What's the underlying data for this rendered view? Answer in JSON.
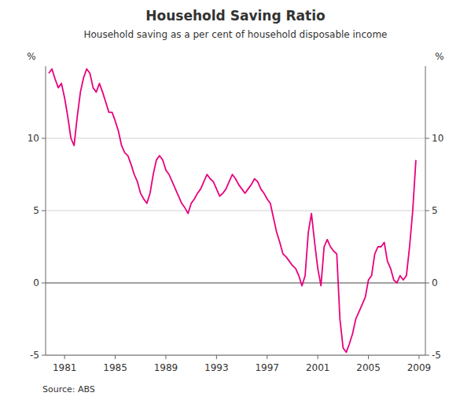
{
  "chart_data": {
    "type": "line",
    "title": "Household Saving Ratio",
    "subtitle": "Household saving as a per cent of household disposable income",
    "y_label": "%",
    "y2_label": "%",
    "source": "Source: ABS",
    "grid": true,
    "xlim": [
      1979.5,
      2009.5
    ],
    "xticks": [
      1981,
      1985,
      1989,
      1993,
      1997,
      2001,
      2005,
      2009
    ],
    "ylim": [
      -5,
      15
    ],
    "yticks": [
      -5,
      0,
      5,
      10
    ],
    "y2lim": [
      -5,
      15
    ],
    "y2ticks": [
      -5,
      0,
      5,
      10
    ],
    "x": [
      1979.75,
      1980.0,
      1980.25,
      1980.5,
      1980.75,
      1981.0,
      1981.25,
      1981.5,
      1981.75,
      1982.0,
      1982.25,
      1982.5,
      1982.75,
      1983.0,
      1983.25,
      1983.5,
      1983.75,
      1984.0,
      1984.25,
      1984.5,
      1984.75,
      1985.0,
      1985.25,
      1985.5,
      1985.75,
      1986.0,
      1986.25,
      1986.5,
      1986.75,
      1987.0,
      1987.25,
      1987.5,
      1987.75,
      1988.0,
      1988.25,
      1988.5,
      1988.75,
      1989.0,
      1989.25,
      1989.5,
      1989.75,
      1990.0,
      1990.25,
      1990.5,
      1990.75,
      1991.0,
      1991.25,
      1991.5,
      1991.75,
      1992.0,
      1992.25,
      1992.5,
      1992.75,
      1993.0,
      1993.25,
      1993.5,
      1993.75,
      1994.0,
      1994.25,
      1994.5,
      1994.75,
      1995.0,
      1995.25,
      1995.5,
      1995.75,
      1996.0,
      1996.25,
      1996.5,
      1996.75,
      1997.0,
      1997.25,
      1997.5,
      1997.75,
      1998.0,
      1998.25,
      1998.5,
      1998.75,
      1999.0,
      1999.25,
      1999.5,
      1999.75,
      2000.0,
      2000.25,
      2000.5,
      2000.75,
      2001.0,
      2001.25,
      2001.5,
      2001.75,
      2002.0,
      2002.25,
      2002.5,
      2002.75,
      2003.0,
      2003.25,
      2003.5,
      2003.75,
      2004.0,
      2004.25,
      2004.5,
      2004.75,
      2005.0,
      2005.25,
      2005.5,
      2005.75,
      2006.0,
      2006.25,
      2006.5,
      2006.75,
      2007.0,
      2007.25,
      2007.5,
      2007.75,
      2008.0,
      2008.25,
      2008.5,
      2008.75
    ],
    "series": [
      {
        "color": "#E8007D",
        "values": [
          14.5,
          14.8,
          14.1,
          13.5,
          13.8,
          12.8,
          11.5,
          10.0,
          9.5,
          11.5,
          13.2,
          14.2,
          14.8,
          14.5,
          13.5,
          13.2,
          13.8,
          13.2,
          12.5,
          11.8,
          11.8,
          11.2,
          10.5,
          9.5,
          9.0,
          8.8,
          8.2,
          7.5,
          7.0,
          6.2,
          5.8,
          5.5,
          6.2,
          7.5,
          8.5,
          8.8,
          8.5,
          7.8,
          7.5,
          7.0,
          6.5,
          6.0,
          5.5,
          5.2,
          4.8,
          5.5,
          5.8,
          6.2,
          6.5,
          7.0,
          7.5,
          7.2,
          7.0,
          6.5,
          6.0,
          6.2,
          6.5,
          7.0,
          7.5,
          7.2,
          6.8,
          6.5,
          6.2,
          6.5,
          6.8,
          7.2,
          7.0,
          6.5,
          6.2,
          5.8,
          5.5,
          4.5,
          3.5,
          2.8,
          2.0,
          1.8,
          1.5,
          1.2,
          1.0,
          0.5,
          -0.2,
          0.5,
          3.5,
          4.8,
          2.8,
          1.0,
          -0.2,
          2.5,
          3.0,
          2.5,
          2.2,
          2.0,
          -2.5,
          -4.5,
          -4.8,
          -4.2,
          -3.5,
          -2.5,
          -2.0,
          -1.5,
          -1.0,
          0.2,
          0.5,
          2.0,
          2.5,
          2.5,
          2.8,
          1.5,
          1.0,
          0.2,
          0.0,
          0.5,
          0.2,
          0.5,
          2.5,
          5.0,
          8.5
        ]
      }
    ]
  }
}
